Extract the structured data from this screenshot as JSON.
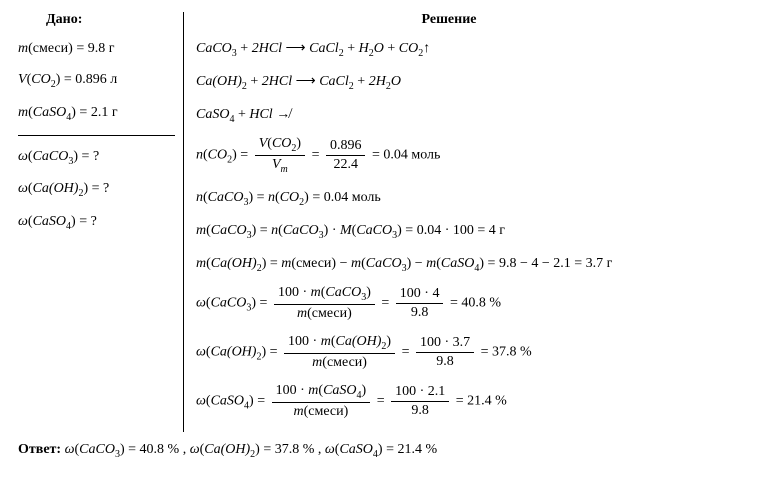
{
  "headers": {
    "given": "Дано:",
    "solution": "Решение"
  },
  "given": {
    "line1_lhs": "m(смеси)",
    "line1_rhs": "9.8 г",
    "line2_lhs_var": "V",
    "line2_lhs_f": "CO",
    "line2_lhs_sub": "2",
    "line2_rhs": "0.896 л",
    "line3_lhs_var": "m",
    "line3_lhs_f": "CaSO",
    "line3_lhs_sub": "4",
    "line3_rhs": "2.1 г"
  },
  "find": {
    "line1_var": "ω",
    "line1_f": "CaCO",
    "line1_sub": "3",
    "line2_var": "ω",
    "line2_f": "Ca(OH)",
    "line2_sub": "2",
    "line3_var": "ω",
    "line3_f": "CaSO",
    "line3_sub": "4",
    "q": "?"
  },
  "sol": {
    "eq1_a": "CaCO",
    "eq1_a_sub": "3",
    "eq1_b": "2HCl",
    "eq1_c": "CaCl",
    "eq1_c_sub": "2",
    "eq1_d": "H",
    "eq1_d_sub": "2",
    "eq1_d2": "O",
    "eq1_e": "CO",
    "eq1_e_sub": "2",
    "eq2_a": "Ca(OH)",
    "eq2_a_sub": "2",
    "eq2_b": "2HCl",
    "eq2_c": "CaCl",
    "eq2_c_sub": "2",
    "eq2_d": "2H",
    "eq2_d_sub": "2",
    "eq2_d2": "O",
    "eq3_a": "CaSO",
    "eq3_a_sub": "4",
    "eq3_b": "HCl",
    "n_co2_num": "0.896",
    "n_co2_den": "22.4",
    "n_co2_res": "0.04 моль",
    "n_caco3_res": "0.04 моль",
    "m_caco3_calc": "0.04 · 100",
    "m_caco3_res": "4 г",
    "m_caoh2_calc": "9.8 − 4 − 2.1",
    "m_caoh2_res": "3.7 г",
    "w_caco3_num": "100 · 4",
    "w_caco3_den": "9.8",
    "w_caco3_res": "40.8 %",
    "w_caoh2_num": "100 · 3.7",
    "w_caoh2_den": "9.8",
    "w_caoh2_res": "37.8 %",
    "w_caso4_num": "100 · 2.1",
    "w_caso4_den": "9.8",
    "w_caso4_res": "21.4 %",
    "m_label": "m",
    "n_label": "n",
    "V_label": "V",
    "Vm_label": "V",
    "Vm_sub": "m",
    "M_label": "M",
    "smesi": "смеси",
    "mol": "моль"
  },
  "answer": {
    "label": "Ответ:",
    "r1": "40.8 %",
    "r2": "37.8 %",
    "r3": "21.4 %"
  },
  "sym": {
    "eq": " = ",
    "plus": " + ",
    "arrow": " ⟶ ",
    "noarrow": " ↛",
    "up": "↑",
    "dot": " · ",
    "comma": " , "
  }
}
